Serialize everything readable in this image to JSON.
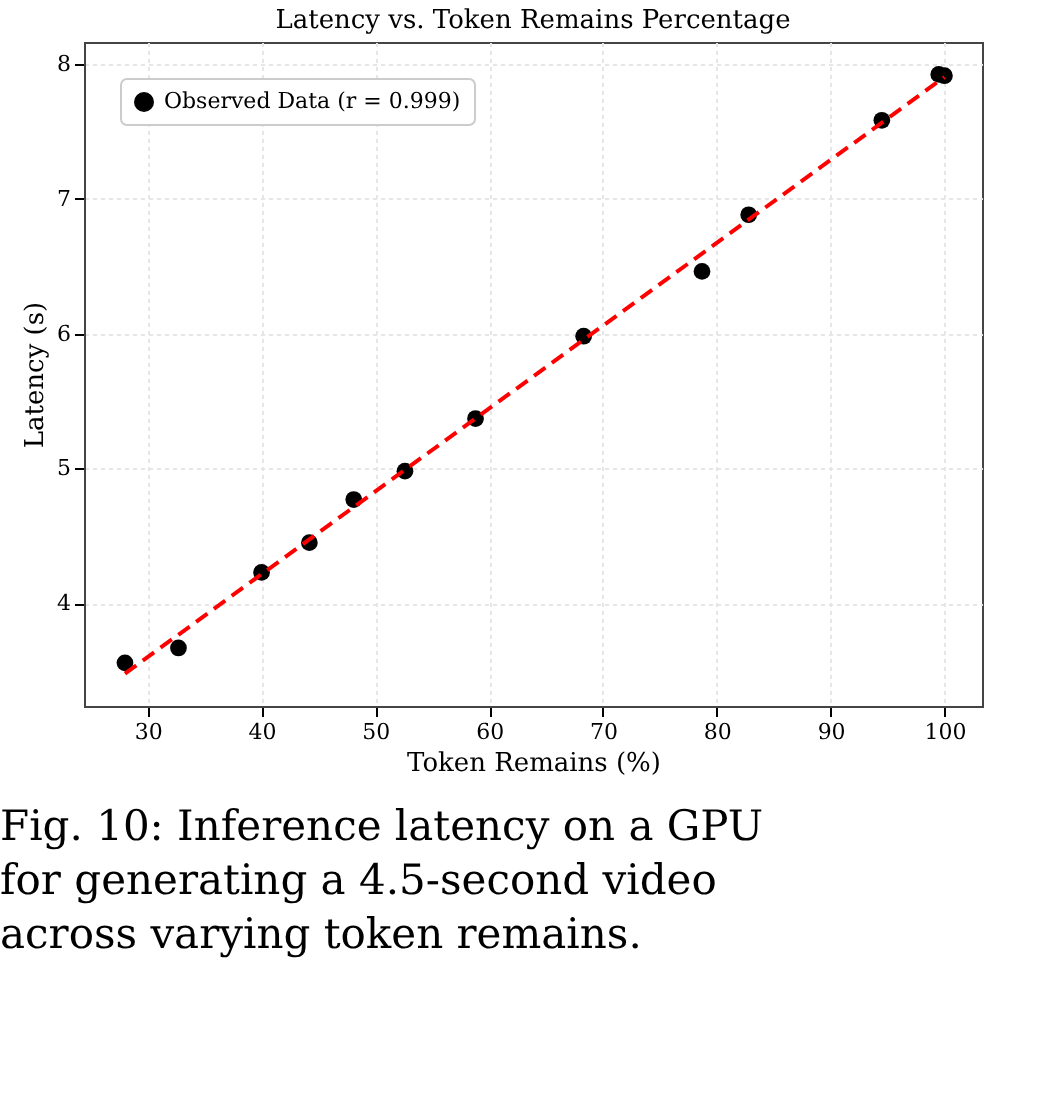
{
  "chart_data": {
    "type": "scatter",
    "title": "Latency vs. Token Remains Percentage",
    "xlabel": "Token Remains (%)",
    "ylabel": "Latency (s)",
    "annotations": [
      "Fig. 10: Inference latency on a GPU for generating a 4.5-second video across varying token remains."
    ],
    "xlim": [
      24.4,
      103.3
    ],
    "ylim": [
      3.24,
      8.16
    ],
    "xticks": [
      30,
      40,
      50,
      60,
      70,
      80,
      90,
      100
    ],
    "yticks": [
      4,
      5,
      6,
      7,
      8
    ],
    "grid": true,
    "legend": "top left",
    "series": [
      {
        "name": "Observed Data (r = 0.999)",
        "marker": "circle",
        "color": "#000000",
        "x": [
          28,
          32.7,
          40,
          44.2,
          48.1,
          52.6,
          58.8,
          68.3,
          78.7,
          82.8,
          94.5,
          99.5,
          100
        ],
        "values": [
          3.56,
          3.67,
          4.23,
          4.45,
          4.77,
          4.98,
          5.37,
          5.98,
          6.46,
          6.88,
          7.58,
          7.92,
          7.91
        ]
      },
      {
        "type": "line",
        "line_style": "dashed",
        "color": "#ff0000",
        "x": [
          28,
          100
        ],
        "values": [
          3.48,
          7.9
        ]
      }
    ]
  }
}
